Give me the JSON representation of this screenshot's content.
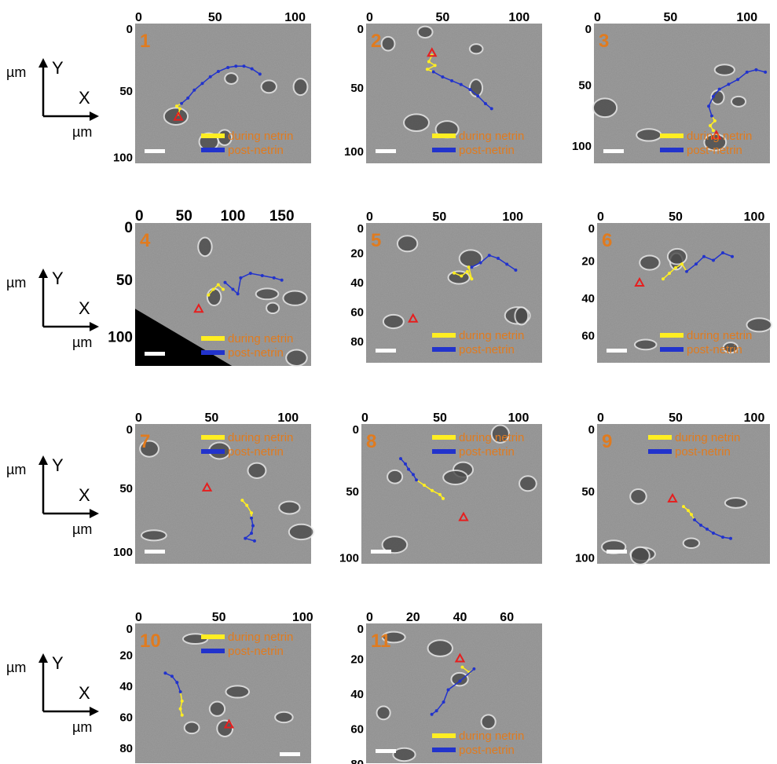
{
  "legend": {
    "during": "during netrin",
    "post": "post-netrin"
  },
  "axes_key": {
    "y_label": "Y",
    "x_label": "X",
    "unit": "µm"
  },
  "colors": {
    "during": "#ffee22",
    "post": "#2233cc",
    "target": "#e61e1e",
    "label": "#e07b1f"
  },
  "panels": [
    {
      "label": "1",
      "x_ticks": [
        "0",
        "50",
        "100"
      ],
      "x_range": [
        0,
        110
      ],
      "y_ticks": [
        "0",
        "50",
        "100"
      ],
      "y_range": [
        0,
        105
      ],
      "target": [
        27,
        70
      ],
      "during": [
        [
          27,
          68
        ],
        [
          28,
          64
        ],
        [
          26,
          62
        ],
        [
          29,
          60
        ]
      ],
      "post": [
        [
          29,
          60
        ],
        [
          33,
          56
        ],
        [
          37,
          50
        ],
        [
          42,
          45
        ],
        [
          47,
          40
        ],
        [
          52,
          36
        ],
        [
          58,
          33
        ],
        [
          63,
          32
        ],
        [
          68,
          32
        ],
        [
          73,
          34
        ],
        [
          78,
          38
        ]
      ]
    },
    {
      "label": "2",
      "x_ticks": [
        "0",
        "50",
        "100"
      ],
      "x_range": [
        0,
        115
      ],
      "y_ticks": [
        "0",
        "50",
        "100"
      ],
      "y_range": [
        0,
        110
      ],
      "target": [
        43,
        23
      ],
      "during": [
        [
          43,
          25
        ],
        [
          41,
          30
        ],
        [
          45,
          33
        ],
        [
          40,
          36
        ],
        [
          44,
          38
        ]
      ],
      "post": [
        [
          44,
          38
        ],
        [
          50,
          42
        ],
        [
          56,
          45
        ],
        [
          62,
          48
        ],
        [
          68,
          52
        ],
        [
          73,
          57
        ],
        [
          78,
          63
        ],
        [
          82,
          67
        ]
      ]
    },
    {
      "label": "3",
      "x_ticks": [
        "0",
        "50",
        "100"
      ],
      "x_range": [
        0,
        115
      ],
      "y_ticks": [
        "0",
        "50",
        "100"
      ],
      "y_range": [
        0,
        115
      ],
      "target": [
        80,
        92
      ],
      "during": [
        [
          78,
          88
        ],
        [
          76,
          84
        ],
        [
          79,
          80
        ],
        [
          77,
          76
        ]
      ],
      "post": [
        [
          77,
          76
        ],
        [
          75,
          68
        ],
        [
          78,
          60
        ],
        [
          82,
          54
        ],
        [
          88,
          50
        ],
        [
          94,
          46
        ],
        [
          100,
          40
        ],
        [
          106,
          38
        ],
        [
          112,
          40
        ]
      ]
    },
    {
      "label": "4",
      "x_ticks": [
        "0",
        "50",
        "100",
        "150"
      ],
      "x_range": [
        0,
        180
      ],
      "y_ticks": [
        "0",
        "50",
        "100"
      ],
      "y_range": [
        0,
        125
      ],
      "target": [
        65,
        75
      ],
      "during": [
        [
          75,
          63
        ],
        [
          80,
          58
        ],
        [
          85,
          54
        ],
        [
          90,
          58
        ]
      ],
      "post": [
        [
          92,
          52
        ],
        [
          100,
          58
        ],
        [
          105,
          62
        ],
        [
          108,
          48
        ],
        [
          118,
          44
        ],
        [
          130,
          46
        ],
        [
          142,
          48
        ],
        [
          150,
          50
        ]
      ]
    },
    {
      "label": "5",
      "x_ticks": [
        "0",
        "50",
        "100"
      ],
      "x_range": [
        0,
        120
      ],
      "y_ticks": [
        "0",
        "20",
        "40",
        "60",
        "80"
      ],
      "y_range": [
        0,
        95
      ],
      "target": [
        32,
        65
      ],
      "during": [
        [
          60,
          34
        ],
        [
          65,
          36
        ],
        [
          69,
          33
        ],
        [
          72,
          38
        ],
        [
          70,
          30
        ]
      ],
      "post": [
        [
          72,
          30
        ],
        [
          78,
          27
        ],
        [
          84,
          22
        ],
        [
          90,
          24
        ],
        [
          96,
          28
        ],
        [
          102,
          32
        ]
      ]
    },
    {
      "label": "6",
      "x_ticks": [
        "0",
        "50",
        "100"
      ],
      "x_range": [
        0,
        110
      ],
      "y_ticks": [
        "0",
        "20",
        "40",
        "60"
      ],
      "y_range": [
        0,
        75
      ],
      "target": [
        27,
        32
      ],
      "during": [
        [
          42,
          30
        ],
        [
          46,
          27
        ],
        [
          50,
          24
        ],
        [
          54,
          22
        ],
        [
          57,
          26
        ]
      ],
      "post": [
        [
          57,
          26
        ],
        [
          63,
          22
        ],
        [
          68,
          18
        ],
        [
          74,
          20
        ],
        [
          80,
          16
        ],
        [
          86,
          18
        ]
      ]
    },
    {
      "label": "7",
      "x_ticks": [
        "0",
        "50",
        "100"
      ],
      "x_range": [
        0,
        115
      ],
      "y_ticks": [
        "0",
        "50",
        "100"
      ],
      "y_range": [
        0,
        110
      ],
      "target": [
        47,
        50
      ],
      "during": [
        [
          70,
          60
        ],
        [
          73,
          64
        ],
        [
          76,
          70
        ],
        [
          76,
          74
        ]
      ],
      "post": [
        [
          76,
          74
        ],
        [
          77,
          80
        ],
        [
          76,
          86
        ],
        [
          72,
          90
        ],
        [
          78,
          92
        ]
      ]
    },
    {
      "label": "8",
      "x_ticks": [
        "0",
        "50",
        "100"
      ],
      "x_range": [
        0,
        115
      ],
      "y_ticks": [
        "0",
        "50",
        "100"
      ],
      "y_range": [
        0,
        105
      ],
      "target": [
        65,
        70
      ],
      "during": [
        [
          35,
          42
        ],
        [
          40,
          46
        ],
        [
          45,
          50
        ],
        [
          50,
          53
        ],
        [
          52,
          56
        ]
      ],
      "post": [
        [
          25,
          26
        ],
        [
          28,
          30
        ],
        [
          30,
          34
        ],
        [
          33,
          38
        ],
        [
          35,
          42
        ]
      ]
    },
    {
      "label": "9",
      "x_ticks": [
        "0",
        "50",
        "100"
      ],
      "x_range": [
        0,
        110
      ],
      "y_ticks": [
        "0",
        "50",
        "100"
      ],
      "y_range": [
        0,
        105
      ],
      "target": [
        48,
        56
      ],
      "during": [
        [
          55,
          62
        ],
        [
          58,
          65
        ],
        [
          60,
          68
        ],
        [
          62,
          72
        ]
      ],
      "post": [
        [
          62,
          72
        ],
        [
          66,
          76
        ],
        [
          70,
          79
        ],
        [
          74,
          82
        ],
        [
          80,
          85
        ],
        [
          85,
          86
        ]
      ]
    },
    {
      "label": "10",
      "x_ticks": [
        "0",
        "50",
        "100"
      ],
      "x_range": [
        0,
        105
      ],
      "y_ticks": [
        "0",
        "20",
        "40",
        "60",
        "80"
      ],
      "y_range": [
        0,
        90
      ],
      "target": [
        56,
        65
      ],
      "during": [
        [
          27,
          44
        ],
        [
          28,
          50
        ],
        [
          27,
          55
        ],
        [
          28,
          59
        ]
      ],
      "post": [
        [
          18,
          32
        ],
        [
          22,
          34
        ],
        [
          25,
          38
        ],
        [
          27,
          44
        ]
      ]
    },
    {
      "label": "11",
      "x_ticks": [
        "0",
        "20",
        "40",
        "60"
      ],
      "x_range": [
        0,
        75
      ],
      "y_ticks": [
        "0",
        "20",
        "40",
        "60",
        "80"
      ],
      "y_range": [
        0,
        80
      ],
      "target": [
        40,
        20
      ],
      "during": [
        [
          41,
          25
        ],
        [
          44,
          28
        ],
        [
          46,
          26
        ]
      ],
      "post": [
        [
          46,
          26
        ],
        [
          40,
          33
        ],
        [
          35,
          38
        ],
        [
          33,
          45
        ],
        [
          30,
          50
        ],
        [
          28,
          52
        ]
      ]
    }
  ]
}
